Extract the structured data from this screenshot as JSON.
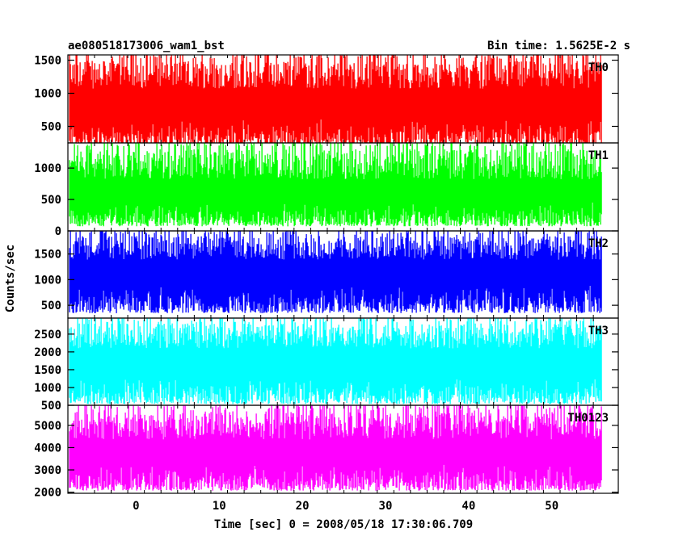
{
  "chart_data": {
    "type": "line",
    "title_left": "ae080518173006_wam1_bst",
    "title_right": "Bin time: 1.5625E-2 s",
    "xlabel": "Time [sec] 0 = 2008/05/18 17:30:06.709",
    "ylabel": "Counts/sec",
    "xlim": [
      -8.2,
      58
    ],
    "x_data_range": [
      -8,
      56
    ],
    "x_ticks": [
      0,
      10,
      20,
      30,
      40,
      50
    ],
    "x_tick_labels": [
      "0",
      "10",
      "20",
      "30",
      "40",
      "50"
    ],
    "panels": [
      {
        "name": "TH0",
        "color": "#ff0000",
        "ylim": [
          250,
          1580
        ],
        "y_ticks": [
          500,
          1000,
          1500
        ],
        "y_tick_labels": [
          "500",
          "1000",
          "1500"
        ],
        "base_mean": 260,
        "mean": 730,
        "top_mean": 1280,
        "top_max": 1580
      },
      {
        "name": "TH1",
        "color": "#00ff00",
        "ylim": [
          0,
          1400
        ],
        "y_ticks": [
          0,
          500,
          1000
        ],
        "y_tick_labels": [
          "0",
          "500",
          "1000"
        ],
        "base_mean": 130,
        "mean": 560,
        "top_mean": 1060,
        "top_max": 1400
      },
      {
        "name": "TH2",
        "color": "#0000ff",
        "ylim": [
          250,
          1950
        ],
        "y_ticks": [
          500,
          1000,
          1500
        ],
        "y_tick_labels": [
          "500",
          "1000",
          "1500"
        ],
        "base_mean": 430,
        "mean": 1050,
        "top_mean": 1620,
        "top_max": 1950
      },
      {
        "name": "TH3",
        "color": "#00ffff",
        "ylim": [
          500,
          2950
        ],
        "y_ticks": [
          500,
          1000,
          1500,
          2000,
          2500
        ],
        "y_tick_labels": [
          "500",
          "1000",
          "1500",
          "2000",
          "2500"
        ],
        "base_mean": 650,
        "mean": 1500,
        "top_mean": 2450,
        "top_max": 2950
      },
      {
        "name": "TH0123",
        "color": "#ff00ff",
        "ylim": [
          1950,
          5900
        ],
        "y_ticks": [
          2000,
          3000,
          4000,
          5000
        ],
        "y_tick_labels": [
          "2000",
          "3000",
          "4000",
          "5000"
        ],
        "base_mean": 2250,
        "mean": 3600,
        "top_mean": 5000,
        "top_max": 5900
      }
    ]
  }
}
